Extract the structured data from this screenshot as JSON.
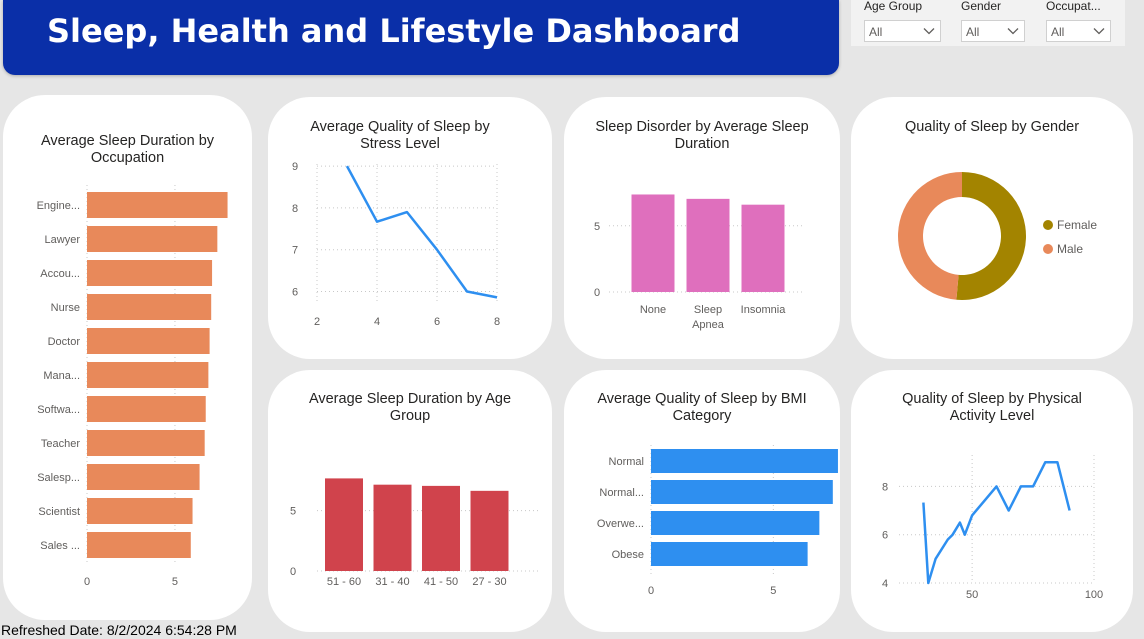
{
  "header": {
    "title": "Sleep, Health and Lifestyle Dashboard"
  },
  "slicers": [
    {
      "label": "Age Group",
      "value": "All"
    },
    {
      "label": "Gender",
      "value": "All"
    },
    {
      "label": "Occupat...",
      "value": "All"
    }
  ],
  "footer": {
    "refreshed": "Refreshed Date: 8/2/2024 6:54:28 PM"
  },
  "cards": {
    "occupation": {
      "title": "Average Sleep Duration by Occupation",
      "chart_data": {
        "type": "bar",
        "orientation": "horizontal",
        "title": "Average Sleep Duration by Occupation",
        "categories": [
          "Engine...",
          "Lawyer",
          "Accou...",
          "Nurse",
          "Doctor",
          "Mana...",
          "Softwa...",
          "Teacher",
          "Salesp...",
          "Scientist",
          "Sales ..."
        ],
        "values": [
          7.99,
          7.41,
          7.11,
          7.06,
          6.97,
          6.9,
          6.75,
          6.69,
          6.4,
          6.0,
          5.9
        ],
        "xlim": [
          0,
          8.3
        ],
        "xticks": [
          0,
          5
        ],
        "color": "#e8895a",
        "grid": true
      }
    },
    "stress": {
      "title": "Average Quality of Sleep by Stress Level",
      "chart_data": {
        "type": "line",
        "title": "Average Quality of Sleep by Stress Level",
        "x": [
          3,
          4,
          5,
          6,
          7,
          8
        ],
        "values": [
          9.0,
          7.67,
          7.9,
          7.0,
          6.0,
          5.86
        ],
        "xlim": [
          2,
          8
        ],
        "ylim": [
          5.75,
          9.05
        ],
        "xticks": [
          2,
          4,
          6,
          8
        ],
        "yticks": [
          6,
          7,
          8,
          9
        ],
        "color": "#2e8ff0",
        "grid": true
      }
    },
    "disorder": {
      "title": "Sleep Disorder by Average Sleep Duration",
      "chart_data": {
        "type": "bar",
        "title": "Sleep Disorder by Average Sleep Duration",
        "categories": [
          "None",
          "Sleep Apnea",
          "Insomnia"
        ],
        "category_lines": [
          [
            "None"
          ],
          [
            "Sleep",
            "Apnea"
          ],
          [
            "Insomnia"
          ]
        ],
        "values": [
          7.36,
          7.03,
          6.59
        ],
        "ylim": [
          0,
          8
        ],
        "yticks": [
          0,
          5
        ],
        "color": "#df6fbd",
        "grid": true
      }
    },
    "gender": {
      "title": "Quality of Sleep by Gender",
      "chart_data": {
        "type": "pie",
        "donut": true,
        "title": "Quality of Sleep by Gender",
        "categories": [
          "Female",
          "Male"
        ],
        "values": [
          51.4,
          48.6
        ],
        "colors": [
          "#a38400",
          "#e8895a"
        ],
        "legend": "right"
      }
    },
    "age": {
      "title": "Average Sleep Duration by Age Group",
      "chart_data": {
        "type": "bar",
        "title": "Average Sleep Duration by Age Group",
        "categories": [
          "51 - 60",
          "31 - 40",
          "41 - 50",
          "27 - 30"
        ],
        "values": [
          7.67,
          7.15,
          7.05,
          6.64
        ],
        "ylim": [
          0,
          8.2
        ],
        "yticks": [
          0,
          5
        ],
        "color": "#d0434c",
        "grid": true
      }
    },
    "bmi": {
      "title": "Average Quality of Sleep by BMI Category",
      "chart_data": {
        "type": "bar",
        "orientation": "horizontal",
        "title": "Average Quality of Sleep by BMI Category",
        "categories": [
          "Normal",
          "Normal...",
          "Overwe...",
          "Obese"
        ],
        "values": [
          7.64,
          7.43,
          6.88,
          6.4
        ],
        "xlim": [
          0,
          8.5
        ],
        "xticks": [
          0,
          5
        ],
        "color": "#2e8ff0",
        "grid": true
      }
    },
    "activity": {
      "title": "Quality of Sleep by Physical Activity Level",
      "chart_data": {
        "type": "line",
        "title": "Quality of Sleep by Physical Activity Level",
        "x": [
          30,
          32,
          35,
          40,
          42,
          45,
          47,
          50,
          55,
          60,
          65,
          70,
          75,
          80,
          85,
          90
        ],
        "values": [
          7.33,
          4.0,
          5.0,
          5.8,
          6.0,
          6.5,
          6.0,
          6.8,
          7.4,
          8.0,
          7.0,
          8.0,
          8.0,
          9.0,
          9.0,
          7.0
        ],
        "xlim": [
          20,
          100
        ],
        "ylim": [
          4,
          9.3
        ],
        "xticks": [
          50,
          100
        ],
        "yticks": [
          4,
          6,
          8
        ],
        "color": "#2e8ff0",
        "grid": true
      }
    }
  }
}
